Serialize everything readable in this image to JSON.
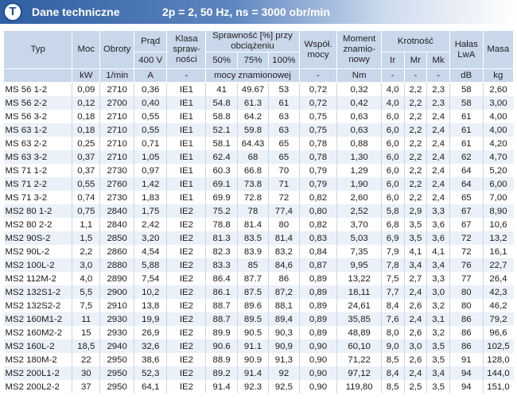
{
  "header": {
    "badge": "T",
    "title": "Dane techniczne",
    "subtitle": "2p = 2, 50 Hz, ns = 3000 obr/min",
    "colors": {
      "bar_dark": "#2f5ea3",
      "bar_light": "#cfdcee",
      "header_cell": "#c8d7ea",
      "row_alt": "#ebf1f8"
    }
  },
  "table": {
    "h": {
      "typ": "Typ",
      "moc": "Moc",
      "obroty": "Obroty",
      "prad": "Prąd",
      "klasa": "Klasa spraw-ności",
      "sprawnosc": "Sprawność [%] przy obciążeniu",
      "wspol": "Współ. mocy",
      "moment": "Moment znamio-nowy",
      "krotnosc": "Krotność",
      "halas": "Hałas LwA",
      "masa": "Masa",
      "v400": "400 V",
      "p50": "50%",
      "p75": "75%",
      "p100": "100%",
      "ir": "Ir",
      "mr": "Mr",
      "mk": "Mk"
    },
    "u": {
      "moc": "kW",
      "obroty": "1/min",
      "prad": "A",
      "klasa": "-",
      "sprawnosc": "mocy znamionowej",
      "wspol": "-",
      "moment": "Nm",
      "ir": "-",
      "mr": "-",
      "mk": "-",
      "halas": "dB",
      "masa": "kg"
    },
    "rows": [
      [
        "MS 56 1-2",
        "0,09",
        "2710",
        "0,36",
        "IE1",
        "41",
        "49.67",
        "53",
        "0,72",
        "0,32",
        "4,0",
        "2,2",
        "2,3",
        "58",
        "2,60"
      ],
      [
        "MS 56 2-2",
        "0,12",
        "2700",
        "0,40",
        "IE1",
        "54.8",
        "61.3",
        "61",
        "0,72",
        "0,42",
        "4,0",
        "2,2",
        "2,3",
        "58",
        "3,00"
      ],
      [
        "MS 56 3-2",
        "0,18",
        "2710",
        "0,55",
        "IE1",
        "58.8",
        "64.2",
        "63",
        "0,75",
        "0,63",
        "6,0",
        "2,2",
        "2,4",
        "61",
        "4,00"
      ],
      [
        "MS 63 1-2",
        "0,18",
        "2710",
        "0,55",
        "IE1",
        "52.1",
        "59.8",
        "63",
        "0,75",
        "0,63",
        "6,0",
        "2,2",
        "2,4",
        "61",
        "4,00"
      ],
      [
        "MS 63 2-2",
        "0,25",
        "2710",
        "0,71",
        "IE1",
        "58.1",
        "64.43",
        "65",
        "0,78",
        "0,88",
        "6,0",
        "2,2",
        "2,4",
        "61",
        "4,20"
      ],
      [
        "MS 63 3-2",
        "0,37",
        "2710",
        "1,05",
        "IE1",
        "62.4",
        "68",
        "65",
        "0,78",
        "1,30",
        "6,0",
        "2,2",
        "2,4",
        "62",
        "4,70"
      ],
      [
        "MS 71 1-2",
        "0,37",
        "2730",
        "0,97",
        "IE1",
        "60.3",
        "66.8",
        "70",
        "0,79",
        "1,29",
        "6,0",
        "2,2",
        "2,4",
        "64",
        "5,20"
      ],
      [
        "MS 71 2-2",
        "0,55",
        "2760",
        "1,42",
        "IE1",
        "69.1",
        "73.8",
        "71",
        "0,79",
        "1,90",
        "6,0",
        "2,2",
        "2,4",
        "64",
        "6,00"
      ],
      [
        "MS 71 3-2",
        "0,74",
        "2730",
        "1,83",
        "IE1",
        "69.9",
        "72.8",
        "72",
        "0,82",
        "2,60",
        "6,0",
        "2,2",
        "2,4",
        "65",
        "7,00"
      ],
      [
        "MS2 80 1-2",
        "0,75",
        "2840",
        "1,75",
        "IE2",
        "75.2",
        "78",
        "77,4",
        "0,80",
        "2,52",
        "5,8",
        "2,9",
        "3,3",
        "67",
        "8,90"
      ],
      [
        "MS2 80 2-2",
        "1,1",
        "2840",
        "2,42",
        "IE2",
        "78.8",
        "81.4",
        "80",
        "0,82",
        "3,70",
        "6,8",
        "3,5",
        "3,6",
        "67",
        "10,6"
      ],
      [
        "MS2 90S-2",
        "1,5",
        "2850",
        "3,20",
        "IE2",
        "81.3",
        "83.5",
        "81,4",
        "0,83",
        "5,03",
        "6,9",
        "3,5",
        "3,6",
        "72",
        "13,2"
      ],
      [
        "MS2 90L-2",
        "2,2",
        "2860",
        "4,54",
        "IE2",
        "82.3",
        "83.9",
        "83,2",
        "0,84",
        "7,35",
        "7,9",
        "4,1",
        "4,1",
        "72",
        "16,1"
      ],
      [
        "MS2 100L-2",
        "3,0",
        "2880",
        "5,88",
        "IE2",
        "83.3",
        "85",
        "84,6",
        "0,87",
        "9,95",
        "7,8",
        "3,4",
        "3,4",
        "76",
        "22,7"
      ],
      [
        "MS2 112M-2",
        "4,0",
        "2890",
        "7,54",
        "IE2",
        "86.4",
        "87.7",
        "86",
        "0,89",
        "13,22",
        "7,5",
        "2,7",
        "3,3",
        "77",
        "26,4"
      ],
      [
        "MS2 132S1-2",
        "5,5",
        "2900",
        "10,2",
        "IE2",
        "86.1",
        "87.5",
        "87,2",
        "0,89",
        "18,11",
        "7,7",
        "2,4",
        "3,0",
        "80",
        "42,3"
      ],
      [
        "MS2 132S2-2",
        "7,5",
        "2910",
        "13,8",
        "IE2",
        "88.7",
        "89.6",
        "88,1",
        "0,89",
        "24,61",
        "8,4",
        "2,6",
        "3,2",
        "80",
        "46,2"
      ],
      [
        "MS2 160M1-2",
        "11",
        "2930",
        "19,9",
        "IE2",
        "88.7",
        "89.5",
        "89,4",
        "0,89",
        "35,85",
        "7,6",
        "2,4",
        "3,1",
        "86",
        "79,2"
      ],
      [
        "MS2 160M2-2",
        "15",
        "2930",
        "26,9",
        "IE2",
        "89.9",
        "90.5",
        "90,3",
        "0,89",
        "48,89",
        "8,0",
        "2,6",
        "3,2",
        "86",
        "96,6"
      ],
      [
        "MS2 160L-2",
        "18,5",
        "2940",
        "32,6",
        "IE2",
        "90.6",
        "91.1",
        "90,9",
        "0,90",
        "60,10",
        "9,0",
        "3,0",
        "3,5",
        "86",
        "102,5"
      ],
      [
        "MS2 180M-2",
        "22",
        "2950",
        "38,6",
        "IE2",
        "88.9",
        "90.9",
        "91,3",
        "0,90",
        "71,22",
        "8,5",
        "2,6",
        "3,5",
        "91",
        "128,0"
      ],
      [
        "MS2 200L1-2",
        "30",
        "2950",
        "52,3",
        "IE2",
        "89.2",
        "91.4",
        "92",
        "0,90",
        "97,12",
        "8,4",
        "2,4",
        "3,4",
        "94",
        "144,0"
      ],
      [
        "MS2 200L2-2",
        "37",
        "2950",
        "64,1",
        "IE2",
        "91.4",
        "92.3",
        "92,5",
        "0,90",
        "119,80",
        "8,5",
        "2,5",
        "3,5",
        "94",
        "151,0"
      ]
    ]
  }
}
